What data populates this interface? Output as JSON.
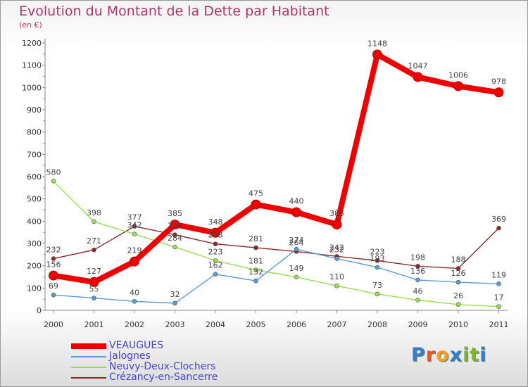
{
  "colors": {
    "title": "#b0336a",
    "legend_text": "#4444cc",
    "axis": "#888888",
    "tick": "#b0336a"
  },
  "chart_data": {
    "type": "line",
    "title": "Evolution du Montant de la Dette par Habitant",
    "subtitle": "(en €)",
    "xlabel": "",
    "ylabel": "",
    "x": [
      "2000",
      "2001",
      "2002",
      "2003",
      "2004",
      "2005",
      "2006",
      "2007",
      "2008",
      "2009",
      "2010",
      "2011"
    ],
    "ylim": [
      0,
      1200
    ],
    "yticks": [
      "0",
      "100",
      "200",
      "300",
      "400",
      "500",
      "600",
      "700",
      "800",
      "900",
      "1000",
      "1100",
      "1200"
    ],
    "grid": false,
    "legend_position": "bottom-left",
    "series": [
      {
        "name": "VEAUGUES",
        "color": "#ee0000",
        "values": [
          156,
          127,
          219,
          385,
          348,
          475,
          440,
          385,
          1148,
          1047,
          1006,
          978
        ]
      },
      {
        "name": "Jalognes",
        "color": "#5b9bd5",
        "values": [
          69,
          55,
          40,
          32,
          162,
          132,
          274,
          232,
          193,
          136,
          126,
          119
        ]
      },
      {
        "name": "Neuvy-Deux-Clochers",
        "color": "#99dd55",
        "values": [
          580,
          398,
          342,
          284,
          223,
          181,
          149,
          110,
          73,
          46,
          26,
          17
        ]
      },
      {
        "name": "Crézancy-en-Sancerre",
        "color": "#8b2a2a",
        "values": [
          232,
          271,
          377,
          339,
          298,
          281,
          264,
          242,
          223,
          198,
          188,
          369
        ]
      }
    ]
  },
  "logo": {
    "letters": [
      "P",
      "r",
      "o",
      "x",
      "i",
      "t",
      "i"
    ],
    "colors": [
      "#2f80c9",
      "#e8591a",
      "#f0a01e",
      "#2f80c9",
      "#7ab82f",
      "#7ab82f",
      "#2f80c9"
    ]
  }
}
